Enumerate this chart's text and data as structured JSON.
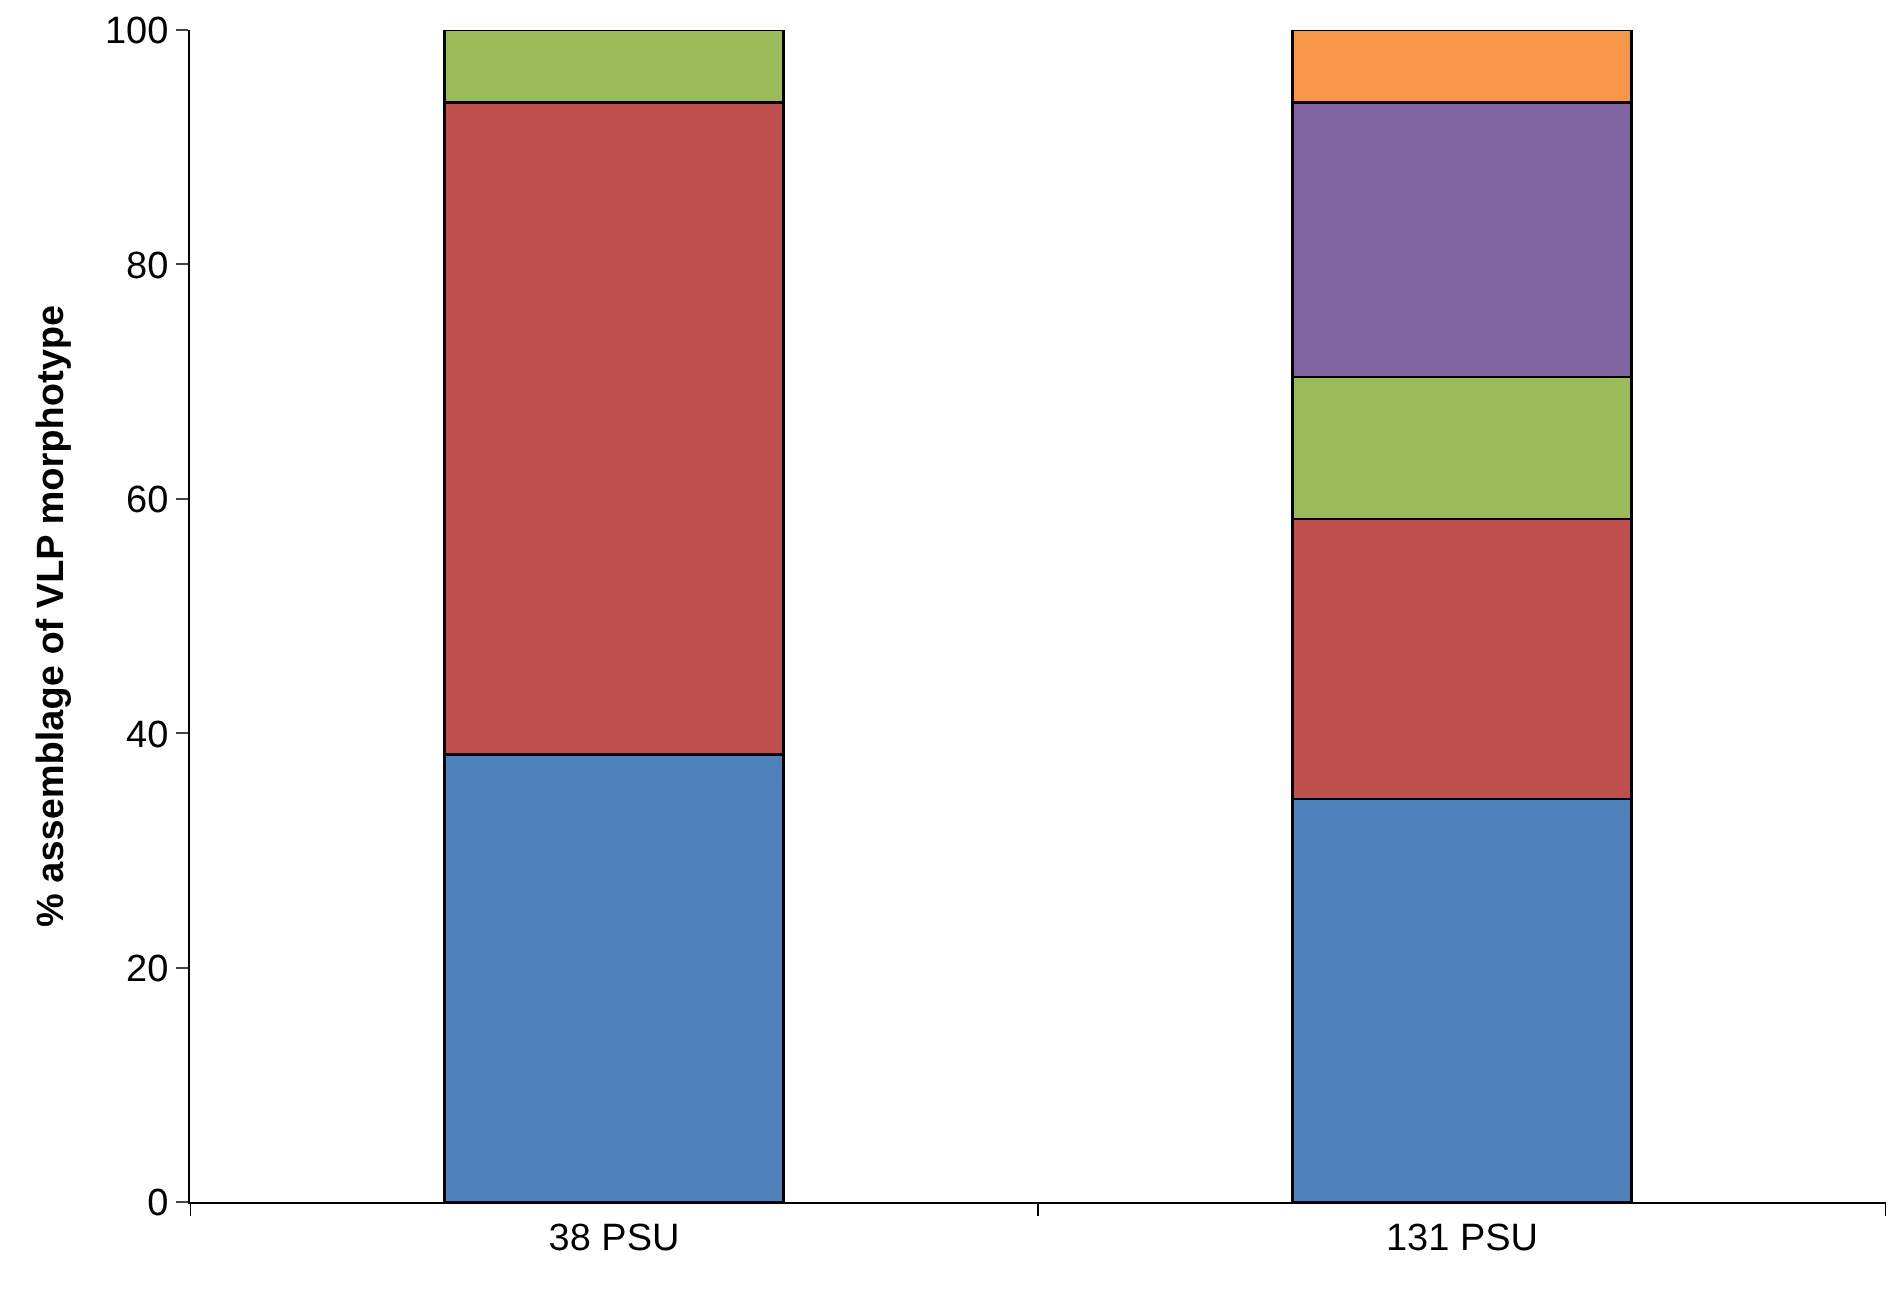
{
  "chart_data": {
    "type": "bar",
    "stacked": true,
    "ylabel": "% assemblage of VLP morphotype",
    "categories": [
      "38 PSU",
      "131 PSU"
    ],
    "series": [
      {
        "color": "#4f81bd",
        "values": [
          38.2,
          34.4
        ]
      },
      {
        "color": "#c0504d",
        "values": [
          55.6,
          23.9
        ]
      },
      {
        "color": "#9bbb59",
        "values": [
          6.2,
          12.1
        ]
      },
      {
        "color": "#8064a2",
        "values": [
          null,
          23.4
        ]
      },
      {
        "color": "#f79646",
        "values": [
          null,
          6.2
        ]
      }
    ],
    "ylim": [
      0,
      100
    ],
    "yticks": [
      0,
      20,
      40,
      60,
      80,
      100
    ]
  }
}
